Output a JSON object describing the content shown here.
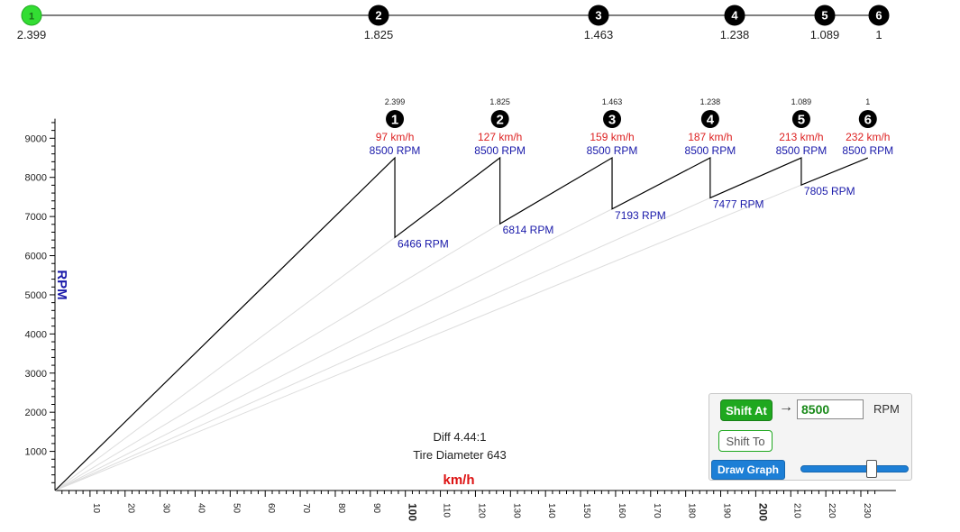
{
  "gear_bar": {
    "gears": [
      {
        "label": "1",
        "ratio": "2.399",
        "active": true
      },
      {
        "label": "2",
        "ratio": "1.825",
        "active": false
      },
      {
        "label": "3",
        "ratio": "1.463",
        "active": false
      },
      {
        "label": "4",
        "ratio": "1.238",
        "active": false
      },
      {
        "label": "5",
        "ratio": "1.089",
        "active": false
      },
      {
        "label": "6",
        "ratio": "1",
        "active": false
      }
    ],
    "active_color": "#33dd33",
    "inactive_color": "#000000"
  },
  "info": {
    "diff": "Diff 4.44:1",
    "tire": "Tire Diameter 643"
  },
  "controls": {
    "shift_at_label": "Shift At",
    "arrow": "→",
    "shift_rpm_value": "8500",
    "rpm_unit": "RPM",
    "shift_to_label": "Shift To",
    "draw_graph_label": "Draw Graph",
    "slider_value": 0.72
  },
  "chart_data": {
    "type": "line",
    "xlabel": "km/h",
    "ylabel": "RPM",
    "xlim": [
      0,
      240
    ],
    "ylim": [
      0,
      9500
    ],
    "x_ticks": [
      10,
      20,
      30,
      40,
      50,
      60,
      70,
      80,
      90,
      100,
      110,
      120,
      130,
      140,
      150,
      160,
      170,
      180,
      190,
      200,
      210,
      220,
      230
    ],
    "x_major_ticks": [
      100,
      200
    ],
    "y_ticks": [
      1000,
      2000,
      3000,
      4000,
      5000,
      6000,
      7000,
      8000,
      9000
    ],
    "shift_rpm": 8500,
    "gears": [
      {
        "label": "1",
        "ratio": "2.399",
        "start_speed": 0,
        "start_rpm": 0,
        "end_speed": 97,
        "end_rpm": 8500,
        "speed_label": "97 km/h",
        "rpm_label": "8500 RPM",
        "drop_rpm": 6466,
        "drop_label": "6466 RPM"
      },
      {
        "label": "2",
        "ratio": "1.825",
        "start_speed": 97,
        "start_rpm": 6466,
        "end_speed": 127,
        "end_rpm": 8500,
        "speed_label": "127 km/h",
        "rpm_label": "8500 RPM",
        "drop_rpm": 6814,
        "drop_label": "6814 RPM"
      },
      {
        "label": "3",
        "ratio": "1.463",
        "start_speed": 127,
        "start_rpm": 6814,
        "end_speed": 159,
        "end_rpm": 8500,
        "speed_label": "159 km/h",
        "rpm_label": "8500 RPM",
        "drop_rpm": 7193,
        "drop_label": "7193 RPM"
      },
      {
        "label": "4",
        "ratio": "1.238",
        "start_speed": 159,
        "start_rpm": 7193,
        "end_speed": 187,
        "end_rpm": 8500,
        "speed_label": "187 km/h",
        "rpm_label": "8500 RPM",
        "drop_rpm": 7477,
        "drop_label": "7477 RPM"
      },
      {
        "label": "5",
        "ratio": "1.089",
        "start_speed": 187,
        "start_rpm": 7477,
        "end_speed": 213,
        "end_rpm": 8500,
        "speed_label": "213 km/h",
        "rpm_label": "8500 RPM",
        "drop_rpm": 7805,
        "drop_label": "7805 RPM"
      },
      {
        "label": "6",
        "ratio": "1",
        "start_speed": 213,
        "start_rpm": 7805,
        "end_speed": 232,
        "end_rpm": 8500,
        "speed_label": "232 km/h",
        "rpm_label": "8500 RPM",
        "drop_rpm": null,
        "drop_label": ""
      }
    ],
    "colors": {
      "speed_label": "#dd2222",
      "rpm_label": "#1a1aaa",
      "axis_label_x": "#dd1111",
      "axis_label_y": "#1a1aaa",
      "guide_line": "#dddddd",
      "curve": "#000000"
    }
  }
}
